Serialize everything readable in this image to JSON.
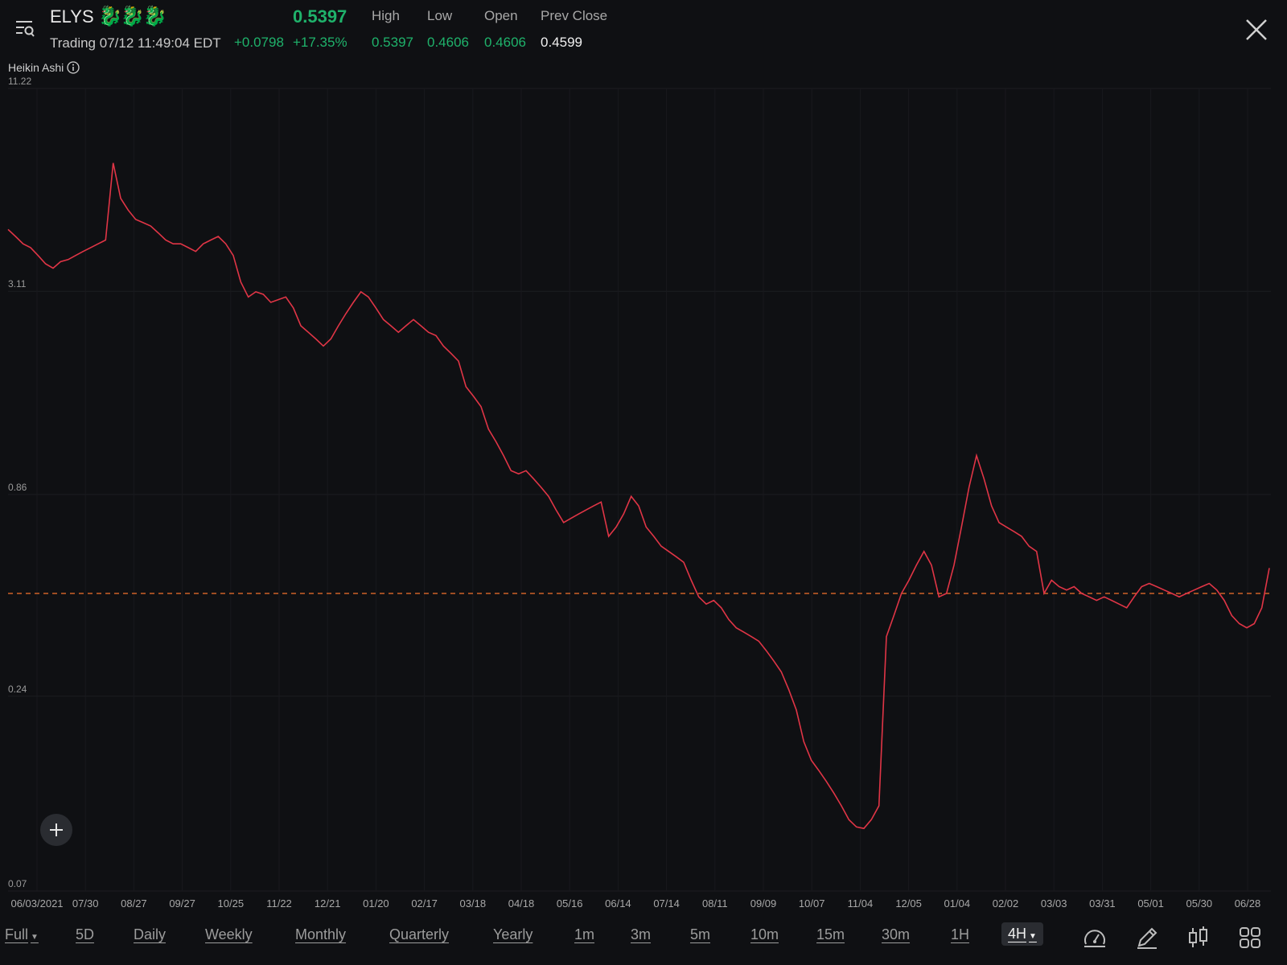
{
  "header": {
    "ticker": "ELYS",
    "ticker_emoji": "🐉🐉🐉",
    "status": "Trading 07/12 11:49:04 EDT",
    "price": "0.5397",
    "change": "+0.0798",
    "change_pct": "+17.35%",
    "stats": [
      {
        "label": "High",
        "value": "0.5397"
      },
      {
        "label": "Low",
        "value": "0.4606"
      },
      {
        "label": "Open",
        "value": "0.4606"
      },
      {
        "label": "Prev Close",
        "value": "0.4599"
      }
    ],
    "colors": {
      "up": "#1fb26b",
      "line": "#e03546",
      "ref": "#e0692a"
    }
  },
  "indicator_label": "Heikin Ashi",
  "chart_data": {
    "type": "line",
    "scale": "log",
    "ylim": [
      0.07,
      11.22
    ],
    "y_ticks": [
      "11.22",
      "3.11",
      "0.86",
      "0.24",
      "0.07"
    ],
    "x_ticks": [
      "06/03/2021",
      "07/30",
      "08/27",
      "09/27",
      "10/25",
      "11/22",
      "12/21",
      "01/20",
      "02/17",
      "03/18",
      "04/18",
      "05/16",
      "06/14",
      "07/14",
      "08/11",
      "09/09",
      "10/07",
      "11/04",
      "12/05",
      "01/04",
      "02/02",
      "03/03",
      "03/31",
      "05/01",
      "05/30",
      "06/28"
    ],
    "reference_line": {
      "label": "Prev Close",
      "value": 0.4599
    },
    "series": [
      {
        "values": [
          4.6,
          4.4,
          4.2,
          4.1,
          3.9,
          3.7,
          3.6,
          3.75,
          3.8,
          3.9,
          4.0,
          4.1,
          4.2,
          4.3,
          7.0,
          5.6,
          5.2,
          4.9,
          4.8,
          4.7,
          4.5,
          4.3,
          4.2,
          4.2,
          4.1,
          4.0,
          4.2,
          4.3,
          4.4,
          4.2,
          3.9,
          3.3,
          3.0,
          3.1,
          3.05,
          2.9,
          2.95,
          3.0,
          2.8,
          2.5,
          2.4,
          2.3,
          2.2,
          2.3,
          2.5,
          2.7,
          2.9,
          3.1,
          3.0,
          2.8,
          2.6,
          2.5,
          2.4,
          2.5,
          2.6,
          2.5,
          2.4,
          2.35,
          2.2,
          2.1,
          2.0,
          1.7,
          1.6,
          1.5,
          1.3,
          1.2,
          1.1,
          1.0,
          0.98,
          1.0,
          0.95,
          0.9,
          0.85,
          0.78,
          0.72,
          0.74,
          0.76,
          0.78,
          0.8,
          0.82,
          0.66,
          0.7,
          0.76,
          0.85,
          0.8,
          0.7,
          0.66,
          0.62,
          0.6,
          0.58,
          0.56,
          0.5,
          0.45,
          0.43,
          0.44,
          0.42,
          0.39,
          0.37,
          0.36,
          0.35,
          0.34,
          0.32,
          0.3,
          0.28,
          0.25,
          0.22,
          0.18,
          0.16,
          0.15,
          0.14,
          0.13,
          0.12,
          0.11,
          0.105,
          0.104,
          0.11,
          0.12,
          0.35,
          0.4,
          0.46,
          0.5,
          0.55,
          0.6,
          0.55,
          0.45,
          0.46,
          0.55,
          0.7,
          0.9,
          1.1,
          0.95,
          0.8,
          0.72,
          0.7,
          0.68,
          0.66,
          0.62,
          0.6,
          0.46,
          0.5,
          0.48,
          0.47,
          0.48,
          0.46,
          0.45,
          0.44,
          0.45,
          0.44,
          0.43,
          0.42,
          0.45,
          0.48,
          0.49,
          0.48,
          0.47,
          0.46,
          0.45,
          0.46,
          0.47,
          0.48,
          0.49,
          0.47,
          0.44,
          0.4,
          0.38,
          0.37,
          0.38,
          0.42,
          0.54
        ]
      }
    ]
  },
  "timeframes": [
    {
      "label": "Full",
      "dropdown": true
    },
    {
      "label": "5D"
    },
    {
      "label": "Daily"
    },
    {
      "label": "Weekly"
    },
    {
      "label": "Monthly"
    },
    {
      "label": "Quarterly"
    },
    {
      "label": "Yearly"
    },
    {
      "label": "1m"
    },
    {
      "label": "3m"
    },
    {
      "label": "5m"
    },
    {
      "label": "10m"
    },
    {
      "label": "15m"
    },
    {
      "label": "30m"
    },
    {
      "label": "1H"
    },
    {
      "label": "4H",
      "dropdown": true,
      "active": true
    }
  ],
  "tools": [
    "speedometer-icon",
    "pencil-icon",
    "candlestick-icon",
    "grid-icon"
  ]
}
